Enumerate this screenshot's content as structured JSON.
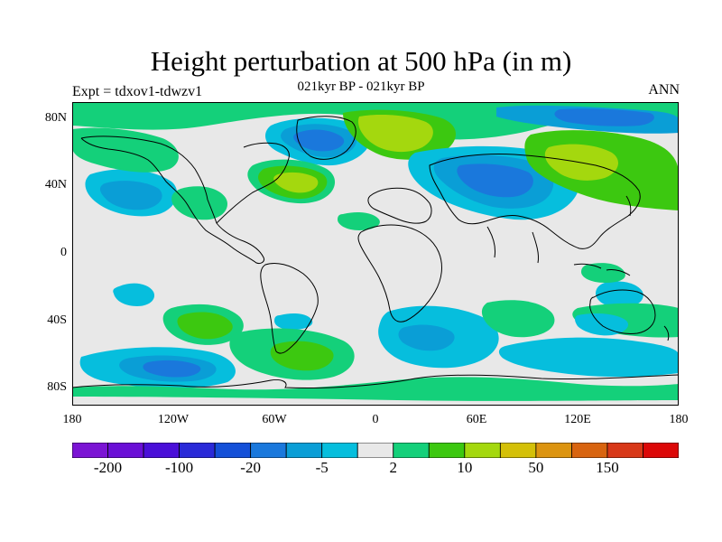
{
  "figure": {
    "title": "Height perturbation at 500 hPa (in m)",
    "subtitle": "021kyr BP - 021kyr BP",
    "experiment_label": "Expt = tdxov1-tdwzv1",
    "season_label": "ANN"
  },
  "axes": {
    "lat_ticks": [
      {
        "label": "80N",
        "value": 80
      },
      {
        "label": "40N",
        "value": 40
      },
      {
        "label": "0",
        "value": 0
      },
      {
        "label": "40S",
        "value": -40
      },
      {
        "label": "80S",
        "value": -80
      }
    ],
    "lon_ticks": [
      {
        "label": "180",
        "value": -180
      },
      {
        "label": "120W",
        "value": -120
      },
      {
        "label": "60W",
        "value": -60
      },
      {
        "label": "0",
        "value": 0
      },
      {
        "label": "60E",
        "value": 60
      },
      {
        "label": "120E",
        "value": 120
      },
      {
        "label": "180",
        "value": 180
      }
    ]
  },
  "colorbar": {
    "colors": [
      "#7b14d4",
      "#6a0fd6",
      "#4a0fd8",
      "#2a2ad8",
      "#1450d8",
      "#1a78dc",
      "#0a9ed6",
      "#06bedd",
      "#e8e8e8",
      "#14d07a",
      "#3cc810",
      "#a4d80e",
      "#d4c008",
      "#dc9410",
      "#d86410",
      "#d83818",
      "#dc0808"
    ],
    "labels": [
      {
        "text": "-200",
        "boundary": 1
      },
      {
        "text": "-100",
        "boundary": 3
      },
      {
        "text": "-20",
        "boundary": 5
      },
      {
        "text": "-5",
        "boundary": 7
      },
      {
        "text": "2",
        "boundary": 9
      },
      {
        "text": "10",
        "boundary": 11
      },
      {
        "text": "50",
        "boundary": 13
      },
      {
        "text": "150",
        "boundary": 15
      }
    ]
  },
  "map_colors": {
    "background": "#e8e8e8",
    "pos_small": "#14d07a",
    "pos_mid": "#3cc810",
    "pos_large": "#a4d80e",
    "neg_small": "#06bedd",
    "neg_mid": "#0a9ed6",
    "neg_large": "#1a78dc",
    "neg_xl": "#1450d8",
    "coast": "#000000"
  }
}
